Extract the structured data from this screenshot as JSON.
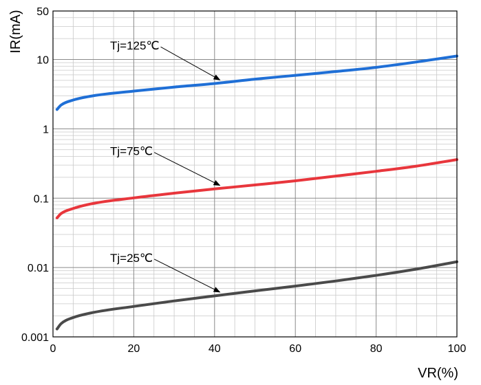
{
  "chart_data": {
    "type": "line",
    "title": "",
    "xlabel": "VR(%)",
    "ylabel": "IR(mA)",
    "x_scale": "linear",
    "y_scale": "log",
    "xlim": [
      0,
      100
    ],
    "ylim": [
      0.001,
      50
    ],
    "grid": true,
    "x_ticks": [
      {
        "value": 0,
        "label": "0"
      },
      {
        "value": 20,
        "label": "20"
      },
      {
        "value": 40,
        "label": "40"
      },
      {
        "value": 60,
        "label": "60"
      },
      {
        "value": 80,
        "label": "80"
      },
      {
        "value": 100,
        "label": "100"
      }
    ],
    "y_ticks": [
      {
        "value": 0.001,
        "label": "0.001"
      },
      {
        "value": 0.01,
        "label": "0.01"
      },
      {
        "value": 0.1,
        "label": "0.1"
      },
      {
        "value": 1,
        "label": "1"
      },
      {
        "value": 10,
        "label": "10"
      },
      {
        "value": 50,
        "label": "50"
      }
    ],
    "x_minor_step": 5,
    "series": [
      {
        "name": "Tj=125℃",
        "color": "#1f6fd6",
        "x": [
          1,
          2,
          5,
          10,
          20,
          30,
          40,
          50,
          60,
          70,
          80,
          90,
          100
        ],
        "y": [
          1.9,
          2.2,
          2.6,
          3.0,
          3.5,
          4.0,
          4.5,
          5.2,
          5.9,
          6.7,
          7.7,
          9.2,
          11.2
        ]
      },
      {
        "name": "Tj=75℃",
        "color": "#e8363c",
        "x": [
          1,
          2,
          5,
          10,
          20,
          30,
          40,
          50,
          60,
          70,
          80,
          90,
          100
        ],
        "y": [
          0.052,
          0.06,
          0.071,
          0.084,
          0.101,
          0.118,
          0.136,
          0.155,
          0.178,
          0.208,
          0.244,
          0.29,
          0.36
        ]
      },
      {
        "name": "Tj=25℃",
        "color": "#4a4a4a",
        "x": [
          1,
          2,
          5,
          10,
          20,
          30,
          40,
          50,
          60,
          70,
          80,
          90,
          100
        ],
        "y": [
          0.0013,
          0.00155,
          0.0019,
          0.00225,
          0.00275,
          0.0033,
          0.0039,
          0.0046,
          0.0054,
          0.0064,
          0.0077,
          0.0095,
          0.0121
        ]
      }
    ],
    "annotations": [
      {
        "text": "Tj=125℃",
        "series": 0,
        "arrow_to_x": 42
      },
      {
        "text": "Tj=75℃",
        "series": 1,
        "arrow_to_x": 42
      },
      {
        "text": "Tj=25℃",
        "series": 2,
        "arrow_to_x": 42
      }
    ]
  }
}
